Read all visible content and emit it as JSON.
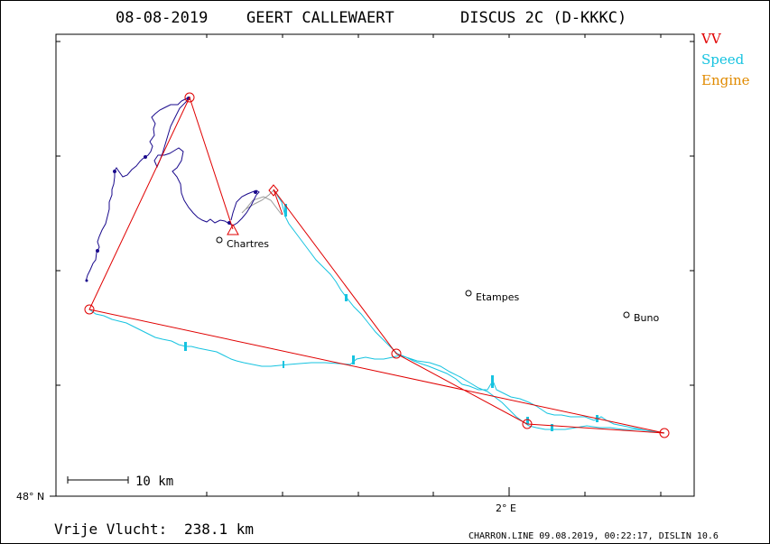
{
  "header": {
    "date": "08-08-2019",
    "pilot": "GEERT CALLEWAERT",
    "glider": "DISCUS 2C (D-KKKC)"
  },
  "legend": [
    {
      "label": "VV",
      "color": "#e00000"
    },
    {
      "label": "Speed",
      "color": "#16c3e0"
    },
    {
      "label": "Engine",
      "color": "#e08a00"
    }
  ],
  "axes": {
    "lat_label": "48° N",
    "lon_label": "2° E"
  },
  "places": [
    {
      "name": "Chartres"
    },
    {
      "name": "Etampes"
    },
    {
      "name": "Buno"
    }
  ],
  "scale": {
    "label": "10 km"
  },
  "distance": {
    "label": "Vrije Vlucht:",
    "value": "238.1 km"
  },
  "footer": {
    "text": "CHARRON.LINE 09.08.2019, 00:22:17, DISLIN 10.6"
  },
  "colors": {
    "task": "#e00000",
    "track_climb": "#1a0a8c",
    "track_speed": "#16c3e0",
    "engine": "#9a9a9a"
  }
}
